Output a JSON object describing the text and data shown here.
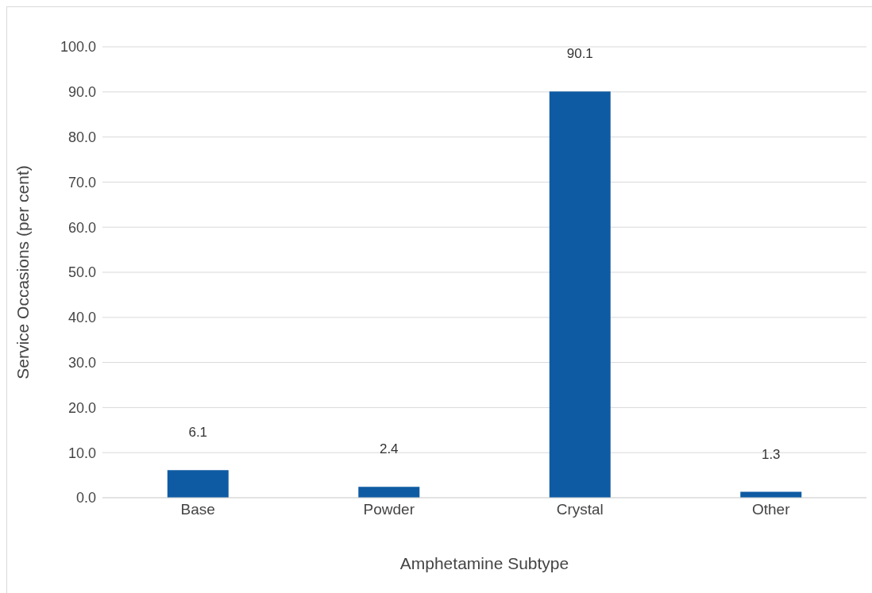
{
  "chart_data": {
    "type": "bar",
    "xlabel": "Amphetamine Subtype",
    "ylabel": "Service Occasions (per cent)",
    "categories": [
      "Base",
      "Powder",
      "Crystal",
      "Other"
    ],
    "values": [
      6.1,
      2.4,
      90.1,
      1.3
    ],
    "color": "#0f5ba3",
    "data_labels": true,
    "ylim": [
      0,
      100
    ],
    "yticks": [
      {
        "value": 0,
        "label": "0.0"
      },
      {
        "value": 10,
        "label": "10.0"
      },
      {
        "value": 20,
        "label": "20.0"
      },
      {
        "value": 30,
        "label": "30.0"
      },
      {
        "value": 40,
        "label": "40.0"
      },
      {
        "value": 50,
        "label": "50.0"
      },
      {
        "value": 60,
        "label": "60.0"
      },
      {
        "value": 70,
        "label": "70.0"
      },
      {
        "value": 80,
        "label": "80.0"
      },
      {
        "value": 90,
        "label": "90.0"
      },
      {
        "value": 100,
        "label": "100.0"
      }
    ],
    "grid": "y"
  }
}
